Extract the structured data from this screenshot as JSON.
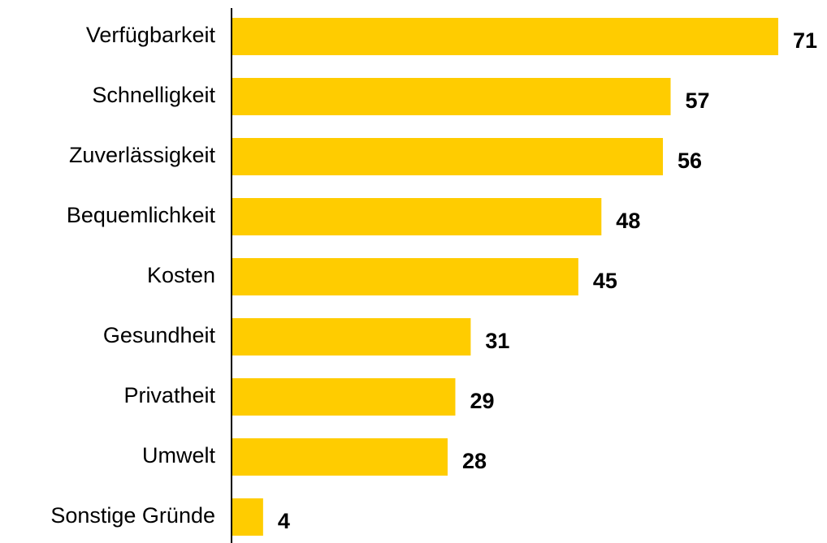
{
  "chart_data": {
    "type": "bar",
    "orientation": "horizontal",
    "categories": [
      "Verfügbarkeit",
      "Schnelligkeit",
      "Zuverlässigkeit",
      "Bequemlichkeit",
      "Kosten",
      "Gesundheit",
      "Privatheit",
      "Umwelt",
      "Sonstige Gründe"
    ],
    "values": [
      71,
      57,
      56,
      48,
      45,
      31,
      29,
      28,
      4
    ],
    "color": "#ffcc00"
  }
}
